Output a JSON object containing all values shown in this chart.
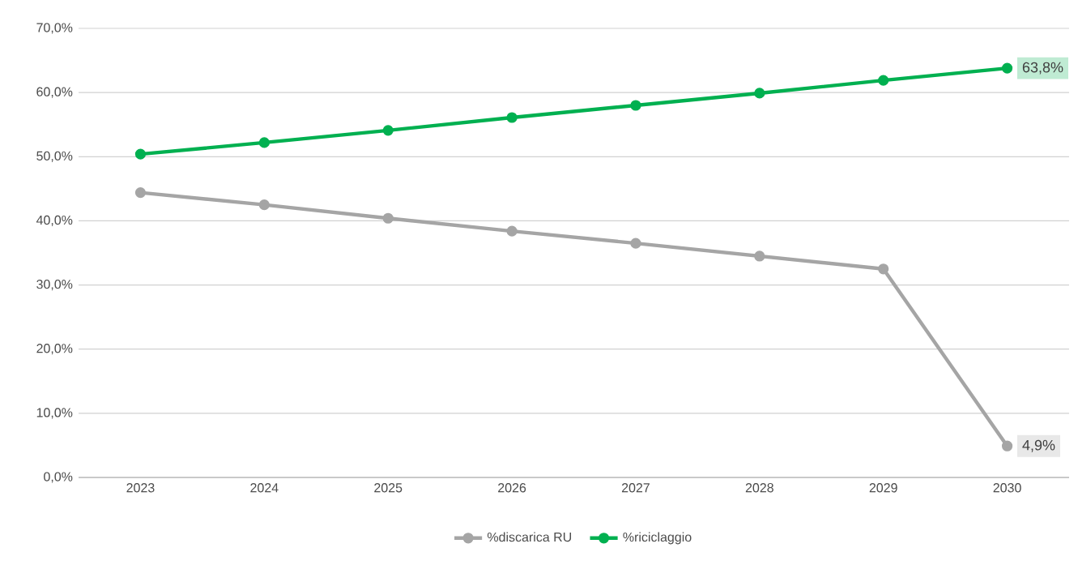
{
  "chart_data": {
    "type": "line",
    "categories": [
      "2023",
      "2024",
      "2025",
      "2026",
      "2027",
      "2028",
      "2029",
      "2030"
    ],
    "series": [
      {
        "name": "%discarica RU",
        "color": "#a5a5a5",
        "values": [
          44.4,
          42.5,
          40.4,
          38.4,
          36.5,
          34.5,
          32.5,
          4.9
        ],
        "value_labels": [
          null,
          null,
          null,
          null,
          null,
          null,
          null,
          "4,9%"
        ]
      },
      {
        "name": "%riciclaggio",
        "color": "#00b050",
        "values": [
          50.4,
          52.2,
          54.1,
          56.1,
          58.0,
          59.9,
          61.9,
          63.8
        ],
        "value_labels": [
          null,
          null,
          null,
          null,
          null,
          null,
          null,
          "63,8%"
        ]
      }
    ],
    "ylim": [
      0,
      70
    ],
    "yticks": [
      {
        "value": 0,
        "label": "0,0%"
      },
      {
        "value": 10,
        "label": "10,0%"
      },
      {
        "value": 20,
        "label": "20,0%"
      },
      {
        "value": 30,
        "label": "30,0%"
      },
      {
        "value": 40,
        "label": "40,0%"
      },
      {
        "value": 50,
        "label": "50,0%"
      },
      {
        "value": 60,
        "label": "60,0%"
      },
      {
        "value": 70,
        "label": "70,0%"
      }
    ],
    "grid": "y",
    "legend": "bottom",
    "marker": "circle",
    "line_style": "solid"
  }
}
